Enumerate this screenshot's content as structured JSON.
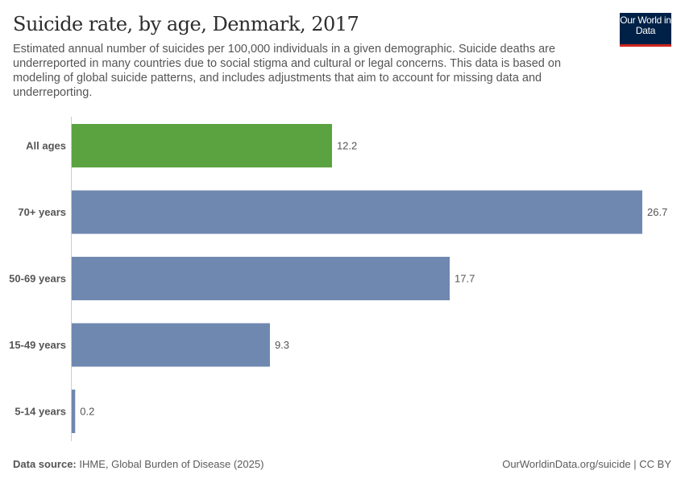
{
  "header": {
    "title": "Suicide rate, by age, Denmark, 2017",
    "subtitle": "Estimated annual number of suicides per 100,000 individuals in a given demographic. Suicide deaths are underreported in many countries due to social stigma and cultural or legal concerns. This data is based on modeling of global suicide patterns, and includes adjustments that aim to account for missing data and underreporting.",
    "logo": "Our World in Data"
  },
  "footer": {
    "source_label": "Data source:",
    "source": "IHME, Global Burden of Disease (2025)",
    "link": "OurWorldinData.org/suicide | CC BY"
  },
  "chart_data": {
    "type": "bar",
    "orientation": "horizontal",
    "title": "Suicide rate, by age, Denmark, 2017",
    "categories": [
      "All ages",
      "70+ years",
      "50-69 years",
      "15-49 years",
      "5-14 years"
    ],
    "values": [
      12.2,
      26.7,
      17.7,
      9.3,
      0.2
    ],
    "colors": [
      "#5aa340",
      "#6f88b0",
      "#6f88b0",
      "#6f88b0",
      "#6f88b0"
    ],
    "xlim": [
      0,
      26.7
    ],
    "grid": false
  }
}
